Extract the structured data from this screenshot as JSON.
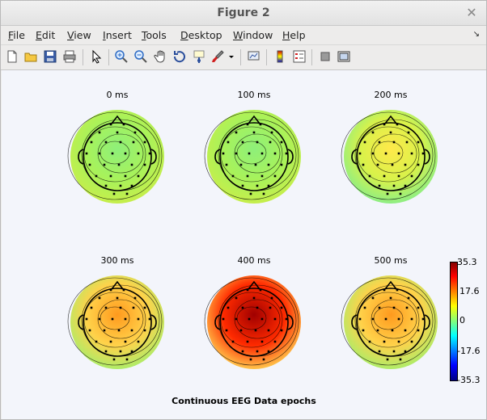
{
  "window": {
    "title": "Figure 2"
  },
  "menu": [
    {
      "label": "File",
      "underline": "F",
      "rest": "ile"
    },
    {
      "label": "Edit",
      "underline": "E",
      "rest": "dit"
    },
    {
      "label": "View",
      "underline": "V",
      "rest": "iew"
    },
    {
      "label": "Insert",
      "underline": "I",
      "rest": "nsert"
    },
    {
      "label": "Tools",
      "underline": "T",
      "rest": "ools"
    },
    {
      "label": "Desktop",
      "underline": "D",
      "rest": "esktop"
    },
    {
      "label": "Window",
      "underline": "W",
      "rest": "indow"
    },
    {
      "label": "Help",
      "underline": "H",
      "rest": "elp"
    }
  ],
  "toolbar": {
    "icons": [
      "new-figure-icon",
      "open-file-icon",
      "save-icon",
      "print-icon",
      "edit-plot-arrow-icon",
      "zoom-in-icon",
      "zoom-out-icon",
      "pan-hand-icon",
      "rotate-3d-icon",
      "data-cursor-icon",
      "brush-icon",
      "brush-dropdown-icon",
      "link-plot-icon",
      "colorbar-icon",
      "legend-icon",
      "hide-plot-tools-icon",
      "show-plot-tools-icon"
    ]
  },
  "plots": [
    {
      "label": "0 ms",
      "level": "low"
    },
    {
      "label": "100 ms",
      "level": "low"
    },
    {
      "label": "200 ms",
      "level": "mid"
    },
    {
      "label": "300 ms",
      "level": "high"
    },
    {
      "label": "400 ms",
      "level": "peak"
    },
    {
      "label": "500 ms",
      "level": "high"
    }
  ],
  "colorbar": {
    "ticks": [
      "35.3",
      "17.6",
      "0",
      "-17.6",
      "-35.3"
    ]
  },
  "caption": "Continuous EEG Data epochs",
  "colors": {
    "accent": "#ffcc00",
    "background": "#f3f5fb"
  }
}
